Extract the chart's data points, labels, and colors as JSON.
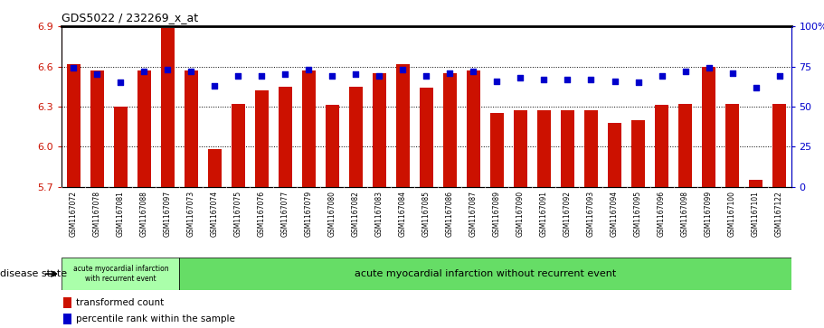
{
  "title": "GDS5022 / 232269_x_at",
  "samples": [
    "GSM1167072",
    "GSM1167078",
    "GSM1167081",
    "GSM1167088",
    "GSM1167097",
    "GSM1167073",
    "GSM1167074",
    "GSM1167075",
    "GSM1167076",
    "GSM1167077",
    "GSM1167079",
    "GSM1167080",
    "GSM1167082",
    "GSM1167083",
    "GSM1167084",
    "GSM1167085",
    "GSM1167086",
    "GSM1167087",
    "GSM1167089",
    "GSM1167090",
    "GSM1167091",
    "GSM1167092",
    "GSM1167093",
    "GSM1167094",
    "GSM1167095",
    "GSM1167096",
    "GSM1167098",
    "GSM1167099",
    "GSM1167100",
    "GSM1167101",
    "GSM1167122"
  ],
  "bar_values": [
    6.62,
    6.57,
    6.3,
    6.57,
    6.89,
    6.57,
    5.98,
    6.32,
    6.42,
    6.45,
    6.57,
    6.31,
    6.45,
    6.55,
    6.62,
    6.44,
    6.55,
    6.57,
    6.25,
    6.27,
    6.27,
    6.27,
    6.27,
    6.18,
    6.2,
    6.31,
    6.32,
    6.6,
    6.32,
    5.75,
    6.32
  ],
  "percentile_values": [
    74,
    70,
    65,
    72,
    73,
    72,
    63,
    69,
    69,
    70,
    73,
    69,
    70,
    69,
    73,
    69,
    71,
    72,
    66,
    68,
    67,
    67,
    67,
    66,
    65,
    69,
    72,
    74,
    71,
    62,
    69
  ],
  "ylim_left": [
    5.7,
    6.9
  ],
  "ylim_right": [
    0,
    100
  ],
  "yticks_left": [
    5.7,
    6.0,
    6.3,
    6.6,
    6.9
  ],
  "yticks_right": [
    0,
    25,
    50,
    75,
    100
  ],
  "bar_color": "#cc1100",
  "dot_color": "#0000cc",
  "bar_width": 0.6,
  "plot_bg": "#ffffff",
  "xtick_bg": "#c8c8c8",
  "group1_label": "acute myocardial infarction\nwith recurrent event",
  "group2_label": "acute myocardial infarction without recurrent event",
  "group1_count": 5,
  "disease_state_label": "disease state",
  "legend1": "transformed count",
  "legend2": "percentile rank within the sample",
  "right_axis_color": "#0000cc",
  "left_axis_color": "#cc1100",
  "green_color": "#66dd66"
}
